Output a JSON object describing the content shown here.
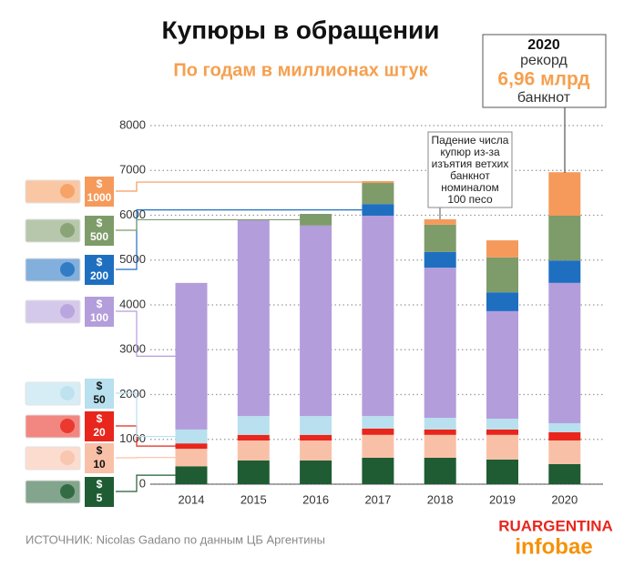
{
  "chart_data": {
    "type": "stacked_bar",
    "title": "Купюры в обращении",
    "subtitle": "По годам в миллионах штук",
    "categories": [
      "2014",
      "2015",
      "2016",
      "2017",
      "2018",
      "2019",
      "2020"
    ],
    "currency_symbol": "$",
    "series": [
      {
        "name": "5",
        "color": "#1f5c33",
        "values": [
          400,
          530,
          530,
          590,
          590,
          550,
          450
        ]
      },
      {
        "name": "10",
        "color": "#f9c0a8",
        "values": [
          390,
          445,
          445,
          510,
          510,
          550,
          525
        ]
      },
      {
        "name": "20",
        "color": "#e8261c",
        "values": [
          120,
          125,
          125,
          140,
          120,
          120,
          185
        ]
      },
      {
        "name": "50",
        "color": "#b8e0ee",
        "values": [
          310,
          420,
          420,
          280,
          260,
          240,
          200
        ]
      },
      {
        "name": "100",
        "color": "#b39ddb",
        "values": [
          3270,
          4370,
          4250,
          4470,
          3350,
          2400,
          3130
        ]
      },
      {
        "name": "200",
        "color": "#1e6fc0",
        "values": [
          null,
          null,
          null,
          260,
          350,
          420,
          500
        ]
      },
      {
        "name": "500",
        "color": "#7e9b6a",
        "values": [
          null,
          null,
          260,
          470,
          610,
          780,
          1000
        ]
      },
      {
        "name": "1000",
        "color": "#f59a5b",
        "values": [
          null,
          null,
          null,
          40,
          120,
          380,
          970
        ]
      }
    ],
    "ylim": [
      0,
      8000
    ],
    "yticks": [
      0,
      1000,
      2000,
      3000,
      4000,
      5000,
      6000,
      7000,
      8000
    ],
    "grid": true,
    "annotations": {
      "drop": [
        "Падение числа",
        "купюр из-за",
        "изъятия ветхих",
        "банкнот",
        "номиналом",
        "100 песо"
      ],
      "record": [
        "2020",
        "рекорд",
        "6,96 млрд",
        "банкнот"
      ]
    },
    "source": "ИСТОЧНИК: Nicolas Gadano по данным ЦБ Аргентины",
    "logo": [
      "RUARGENTINA",
      "infobae"
    ]
  }
}
